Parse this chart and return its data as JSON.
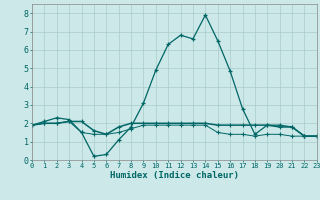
{
  "xlabel": "Humidex (Indice chaleur)",
  "background_color": "#cce8e8",
  "grid_color": "#aacccc",
  "line_color": "#006666",
  "xlim": [
    0,
    23
  ],
  "ylim": [
    0,
    8.5
  ],
  "xticks": [
    0,
    1,
    2,
    3,
    4,
    5,
    6,
    7,
    8,
    9,
    10,
    11,
    12,
    13,
    14,
    15,
    16,
    17,
    18,
    19,
    20,
    21,
    22,
    23
  ],
  "yticks": [
    0,
    1,
    2,
    3,
    4,
    5,
    6,
    7,
    8
  ],
  "line1_x": [
    0,
    1,
    2,
    3,
    4,
    5,
    6,
    7,
    8,
    9,
    10,
    11,
    12,
    13,
    14,
    15,
    16,
    17,
    18,
    19,
    20,
    21,
    22,
    23
  ],
  "line1_y": [
    1.9,
    2.1,
    2.3,
    2.2,
    1.5,
    0.2,
    0.3,
    1.1,
    1.8,
    3.1,
    4.9,
    6.3,
    6.8,
    6.6,
    7.9,
    6.5,
    4.85,
    2.8,
    1.4,
    1.9,
    1.9,
    1.8,
    1.3,
    1.3
  ],
  "line2_x": [
    0,
    1,
    2,
    3,
    4,
    5,
    6,
    7,
    8,
    9,
    10,
    11,
    12,
    13,
    14,
    15,
    16,
    17,
    18,
    19,
    20,
    21,
    22,
    23
  ],
  "line2_y": [
    1.9,
    2.0,
    2.0,
    2.1,
    2.1,
    1.6,
    1.4,
    1.8,
    2.0,
    2.0,
    2.0,
    2.0,
    2.0,
    2.0,
    2.0,
    1.9,
    1.9,
    1.9,
    1.9,
    1.9,
    1.8,
    1.8,
    1.3,
    1.3
  ],
  "line3_x": [
    0,
    1,
    2,
    3,
    4,
    5,
    6,
    7,
    8,
    9,
    10,
    11,
    12,
    13,
    14,
    15,
    16,
    17,
    18,
    19,
    20,
    21,
    22,
    23
  ],
  "line3_y": [
    1.9,
    2.0,
    2.0,
    2.1,
    1.5,
    1.4,
    1.4,
    1.5,
    1.7,
    1.9,
    1.9,
    1.9,
    1.9,
    1.9,
    1.9,
    1.5,
    1.4,
    1.4,
    1.3,
    1.4,
    1.4,
    1.3,
    1.3,
    1.3
  ]
}
